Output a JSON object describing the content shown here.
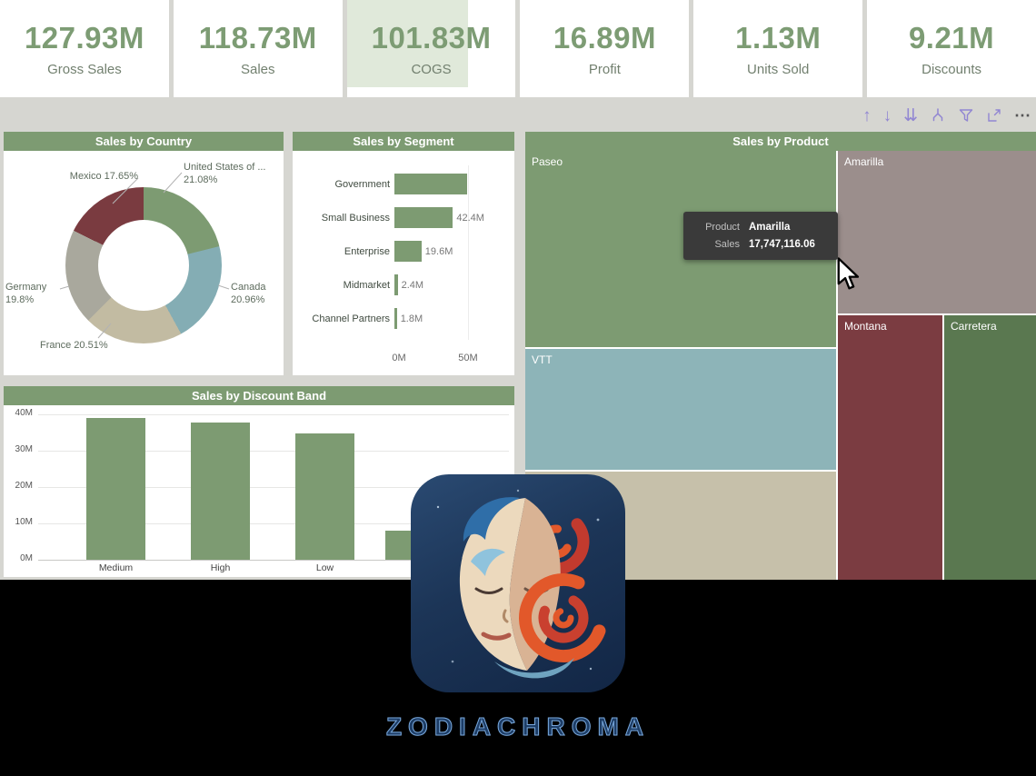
{
  "colors": {
    "accent": "#7d9b72",
    "kpi-number": "#7d9c74",
    "icon-purple": "#9186d2",
    "tooltip-bg": "#3a3a3a",
    "wordmark-navy": "#1d3d66",
    "wordmark-outline": "#79a8dc"
  },
  "kpis": [
    {
      "value": "127.93M",
      "label": "Gross Sales"
    },
    {
      "value": "118.73M",
      "label": "Sales"
    },
    {
      "value": "101.83M",
      "label": "COGS"
    },
    {
      "value": "16.89M",
      "label": "Profit"
    },
    {
      "value": "1.13M",
      "label": "Units Sold"
    },
    {
      "value": "9.21M",
      "label": "Discounts"
    }
  ],
  "toolbar": {
    "drill_up_glyph": "↑",
    "drill_down_glyph": "↓",
    "next_level_glyph": "⇊",
    "more_glyph": "⋯"
  },
  "panels": {
    "country": {
      "title": "Sales by Country"
    },
    "segment": {
      "title": "Sales by Segment"
    },
    "discount": {
      "title": "Sales by Discount Band"
    },
    "product": {
      "title": "Sales by Product"
    }
  },
  "tooltip": {
    "rows": [
      {
        "label": "Product",
        "value": "Amarilla"
      },
      {
        "label": "Sales",
        "value": "17,747,116.06"
      }
    ]
  },
  "branding": {
    "wordmark": "ZODIACHROMA"
  },
  "chart_data": [
    {
      "type": "pie",
      "subtype": "donut",
      "title": "Sales by Country",
      "categories": [
        "United States of America",
        "Canada",
        "France",
        "Germany",
        "Mexico"
      ],
      "values": [
        21.08,
        20.96,
        20.51,
        19.8,
        17.65
      ],
      "unit": "percent",
      "colors": [
        "#7d9b72",
        "#84adb4",
        "#c2bba2",
        "#a9a89d",
        "#7a3b40"
      ],
      "point_labels": [
        "United States of ... 21.08%",
        "Canada 20.96%",
        "France 20.51%",
        "Germany 19.8%",
        "Mexico 17.65%"
      ]
    },
    {
      "type": "bar",
      "orientation": "horizontal",
      "title": "Sales by Segment",
      "categories": [
        "Government",
        "Small Business",
        "Enterprise",
        "Midmarket",
        "Channel Partners"
      ],
      "values": [
        52.6,
        42.4,
        19.6,
        2.4,
        1.8
      ],
      "value_labels": [
        "",
        "42.4M",
        "19.6M",
        "2.4M",
        "1.8M"
      ],
      "x_ticks": [
        "0M",
        "50M"
      ],
      "xlim": [
        0,
        55
      ],
      "color": "#7d9b72"
    },
    {
      "type": "bar",
      "orientation": "vertical",
      "title": "Sales by Discount Band",
      "categories": [
        "Medium",
        "High",
        "Low",
        ""
      ],
      "values": [
        39,
        37.8,
        34.8,
        8
      ],
      "y_ticks": [
        "0M",
        "10M",
        "20M",
        "30M",
        "40M"
      ],
      "ylim": [
        0,
        40
      ],
      "grid": true,
      "color": "#7d9b72"
    },
    {
      "type": "treemap",
      "title": "Sales by Product",
      "items": [
        {
          "label": "Paseo",
          "color": "#7d9b72"
        },
        {
          "label": "Amarilla",
          "color": "#9b8e8c",
          "sales": 17747116.06
        },
        {
          "label": "VTT",
          "color": "#8db4b8"
        },
        {
          "label": "",
          "color": "#c6c0aa"
        },
        {
          "label": "Montana",
          "color": "#7b3c41"
        },
        {
          "label": "Carretera",
          "color": "#5a7850"
        }
      ]
    }
  ]
}
